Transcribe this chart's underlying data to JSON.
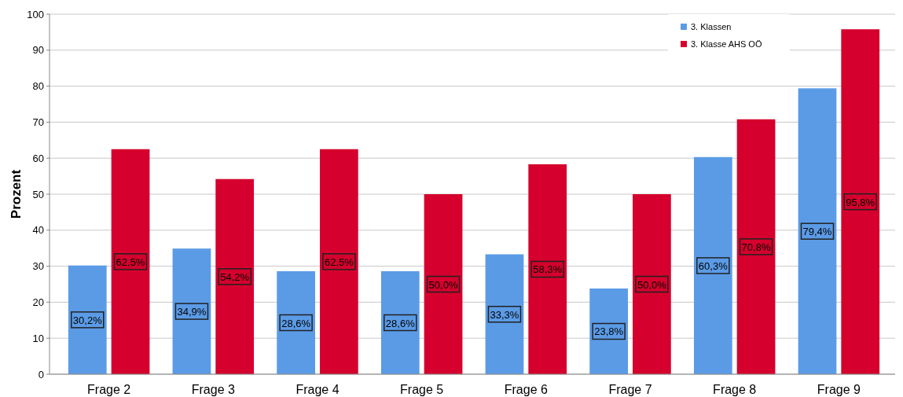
{
  "chart_data": {
    "type": "bar",
    "ylabel": "Prozent",
    "categories": [
      "Frage 2",
      "Frage 3",
      "Frage 4",
      "Frage 5",
      "Frage 6",
      "Frage 7",
      "Frage 8",
      "Frage 9"
    ],
    "series": [
      {
        "name": "3. Klassen",
        "color": "#5b9be6",
        "values": [
          30.2,
          34.9,
          28.6,
          28.6,
          33.3,
          23.8,
          60.3,
          79.4
        ],
        "value_labels": [
          "30,2%",
          "34,9%",
          "28,6%",
          "28,6%",
          "33,3%",
          "23,8%",
          "60,3%",
          "79,4%"
        ]
      },
      {
        "name": "3. Klasse AHS OÖ",
        "color": "#d5002d",
        "values": [
          62.5,
          54.2,
          62.5,
          50.0,
          58.3,
          50.0,
          70.8,
          95.8
        ],
        "value_labels": [
          "62,5%",
          "54,2%",
          "62,5%",
          "50,0%",
          "58,3%",
          "50,0%",
          "70,8%",
          "95,8%"
        ]
      }
    ],
    "ylim": [
      0,
      100
    ],
    "yticks": [
      0,
      10,
      20,
      30,
      40,
      50,
      60,
      70,
      80,
      90,
      100
    ],
    "grid": "y",
    "legend": "top right"
  }
}
